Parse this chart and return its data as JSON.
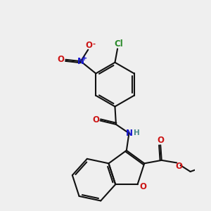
{
  "bg_color": "#efefef",
  "bond_color": "#111111",
  "bond_lw": 1.5,
  "dbo": 0.04,
  "figsize": [
    3.0,
    3.0
  ],
  "dpi": 100,
  "colors": {
    "N": "#1515cc",
    "O": "#cc1515",
    "Cl": "#2a8a2a",
    "C": "#111111",
    "H": "#4a8a8a"
  },
  "fs": 7.5
}
